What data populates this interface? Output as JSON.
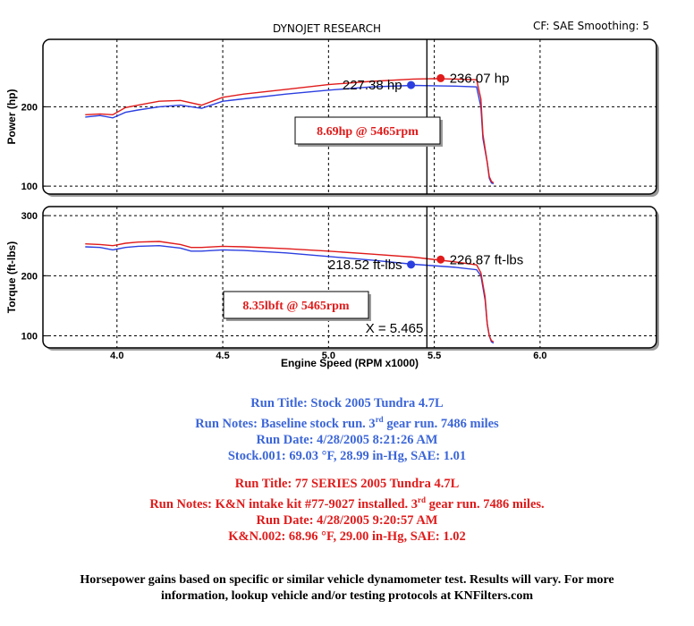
{
  "header": {
    "title": "DYNOJET RESEARCH",
    "cf_label": "CF: SAE  Smoothing: 5"
  },
  "chart_data": [
    {
      "type": "line",
      "title": "DYNOJET RESEARCH",
      "ylabel": "Power (hp)",
      "xlabel": "Engine Speed (RPM x1000)",
      "xlim": [
        3.65,
        6.55
      ],
      "ylim": [
        90,
        285
      ],
      "yticks": [
        "100",
        "200"
      ],
      "ytick_values": [
        100,
        200
      ],
      "xticks": [
        "4.0",
        "4.5",
        "5.0",
        "5.5",
        "6.0"
      ],
      "xtick_values": [
        4.0,
        4.5,
        5.0,
        5.5,
        6.0
      ],
      "cursor_x": 5.465,
      "series": [
        {
          "name": "Stock 2005 Tundra 4.7L",
          "color": "#2b3fe0",
          "x": [
            3.85,
            3.92,
            3.98,
            4.04,
            4.1,
            4.2,
            4.3,
            4.4,
            4.5,
            4.6,
            4.8,
            5.0,
            5.2,
            5.4,
            5.5,
            5.6,
            5.7,
            5.72,
            5.73,
            5.75,
            5.76,
            5.77,
            5.78
          ],
          "y": [
            187,
            189,
            186,
            193,
            196,
            200,
            202,
            198,
            207,
            210,
            216,
            221,
            225,
            227,
            226.5,
            226,
            225,
            200,
            160,
            130,
            110,
            104,
            103
          ]
        },
        {
          "name": "77 SERIES 2005 Tundra 4.7L",
          "color": "#e01b1b",
          "x": [
            3.85,
            3.92,
            3.98,
            4.04,
            4.1,
            4.2,
            4.3,
            4.4,
            4.5,
            4.6,
            4.8,
            5.0,
            5.2,
            5.4,
            5.5,
            5.6,
            5.7,
            5.72,
            5.73,
            5.75,
            5.76,
            5.77,
            5.78
          ],
          "y": [
            190,
            191,
            190,
            199,
            202,
            207,
            208,
            202,
            212,
            216,
            222,
            228,
            232,
            235,
            235.5,
            235,
            234,
            210,
            165,
            130,
            112,
            106,
            104
          ]
        }
      ],
      "markers": [
        {
          "x": 5.39,
          "y": 227.38,
          "label": "227.38 hp",
          "color": "#2b3fe0"
        },
        {
          "x": 5.53,
          "y": 236.07,
          "label": "236.07 hp",
          "color": "#e01b1b"
        }
      ],
      "annotation": "8.69hp @ 5465rpm"
    },
    {
      "type": "line",
      "ylabel": "Torque (ft-lbs)",
      "xlabel": "Engine Speed (RPM x1000)",
      "xlim": [
        3.65,
        6.55
      ],
      "ylim": [
        80,
        315
      ],
      "yticks": [
        "100",
        "200",
        "300"
      ],
      "ytick_values": [
        100,
        200,
        300
      ],
      "xticks": [
        "4.0",
        "4.5",
        "5.0",
        "5.5",
        "6.0"
      ],
      "xtick_values": [
        4.0,
        4.5,
        5.0,
        5.5,
        6.0
      ],
      "cursor_x": 5.465,
      "cursor_label": "X = 5.465",
      "series": [
        {
          "name": "Stock 2005 Tundra 4.7L",
          "color": "#2b3fe0",
          "x": [
            3.85,
            3.92,
            3.98,
            4.04,
            4.1,
            4.2,
            4.3,
            4.35,
            4.4,
            4.5,
            4.6,
            4.8,
            5.0,
            5.2,
            5.4,
            5.6,
            5.7,
            5.72,
            5.74,
            5.75,
            5.76,
            5.77,
            5.78
          ],
          "y": [
            248,
            247,
            243,
            247,
            249,
            250,
            246,
            241,
            241,
            243,
            242,
            238,
            232,
            226,
            219,
            214,
            210,
            200,
            160,
            120,
            100,
            90,
            88
          ]
        },
        {
          "name": "77 SERIES 2005 Tundra 4.7L",
          "color": "#e01b1b",
          "x": [
            3.85,
            3.92,
            3.98,
            4.04,
            4.1,
            4.2,
            4.3,
            4.35,
            4.4,
            4.5,
            4.6,
            4.8,
            5.0,
            5.2,
            5.4,
            5.6,
            5.7,
            5.72,
            5.74,
            5.75,
            5.76,
            5.77,
            5.78
          ],
          "y": [
            253,
            252,
            250,
            254,
            256,
            257,
            252,
            247,
            247,
            249,
            248,
            245,
            241,
            236,
            231,
            223,
            218,
            205,
            165,
            120,
            100,
            92,
            90
          ]
        }
      ],
      "markers": [
        {
          "x": 5.39,
          "y": 218.52,
          "label": "218.52 ft-lbs",
          "color": "#2b3fe0"
        },
        {
          "x": 5.53,
          "y": 226.87,
          "label": "226.87 ft-lbs",
          "color": "#e01b1b"
        }
      ],
      "annotation": "8.35lbft @ 5465rpm"
    }
  ],
  "run1": {
    "title": "Run Title: Stock 2005 Tundra 4.7L",
    "notes_a": "Run Notes: Baseline stock run. 3",
    "notes_sup": "rd",
    "notes_b": " gear run. 7486 miles",
    "date": "Run Date: 4/28/2005 8:21:26 AM",
    "conditions": "Stock.001: 69.03 °F, 28.99 in-Hg, SAE: 1.01"
  },
  "run2": {
    "title": "Run Title: 77 SERIES 2005 Tundra 4.7L",
    "notes_a": "Run Notes: K&N intake kit #77-9027 installed. 3",
    "notes_sup": "rd",
    "notes_b": " gear run. 7486 miles.",
    "date": "Run Date: 4/28/2005 9:20:57 AM",
    "conditions": "K&N.002: 68.96 °F, 29.00 in-Hg, SAE: 1.02"
  },
  "disclaimer": {
    "line1": "Horsepower gains based on specific or similar vehicle dynamometer test. Results will vary. For more",
    "line2": "information, lookup vehicle and/or testing protocols at KNFilters.com"
  }
}
